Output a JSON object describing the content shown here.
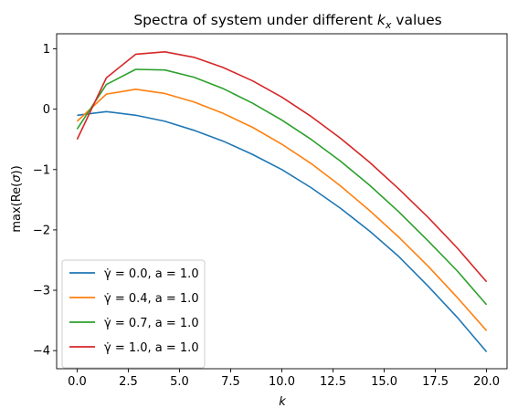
{
  "chart_data": {
    "type": "line",
    "title": "Spectra of system under different k_x values",
    "xlabel": "k",
    "ylabel": "max(Re(σ))",
    "xlim": [
      -1,
      21
    ],
    "ylim": [
      -4.3,
      1.25
    ],
    "x_ticks": [
      "0.0",
      "2.5",
      "5.0",
      "7.5",
      "10.0",
      "12.5",
      "15.0",
      "17.5",
      "20.0"
    ],
    "y_ticks": [
      "1",
      "0",
      "−1",
      "−2",
      "−3",
      "−4"
    ],
    "grid": false,
    "legend_position": "lower left",
    "x": [
      0,
      1.43,
      2.86,
      4.29,
      5.71,
      7.14,
      8.57,
      10.0,
      11.43,
      12.86,
      14.29,
      15.71,
      17.14,
      18.57,
      20.0
    ],
    "series": [
      {
        "name": "γ̇ = 0.0, a = 1.0",
        "color": "#1f77b4",
        "values": [
          -0.1,
          -0.04,
          -0.1,
          -0.2,
          -0.35,
          -0.53,
          -0.75,
          -1.0,
          -1.3,
          -1.64,
          -2.02,
          -2.44,
          -2.93,
          -3.45,
          -4.02
        ]
      },
      {
        "name": "γ̇ = 0.4, a = 1.0",
        "color": "#ff7f0e",
        "values": [
          -0.2,
          0.25,
          0.33,
          0.26,
          0.12,
          -0.07,
          -0.3,
          -0.58,
          -0.9,
          -1.27,
          -1.68,
          -2.12,
          -2.6,
          -3.12,
          -3.67
        ]
      },
      {
        "name": "γ̇ = 0.7, a = 1.0",
        "color": "#2ca02c",
        "values": [
          -0.33,
          0.41,
          0.66,
          0.65,
          0.53,
          0.34,
          0.1,
          -0.18,
          -0.5,
          -0.86,
          -1.26,
          -1.7,
          -2.18,
          -2.68,
          -3.24
        ]
      },
      {
        "name": "γ̇ = 1.0, a = 1.0",
        "color": "#d62728",
        "values": [
          -0.5,
          0.52,
          0.91,
          0.95,
          0.86,
          0.69,
          0.47,
          0.2,
          -0.12,
          -0.48,
          -0.88,
          -1.32,
          -1.79,
          -2.3,
          -2.86
        ]
      }
    ]
  }
}
